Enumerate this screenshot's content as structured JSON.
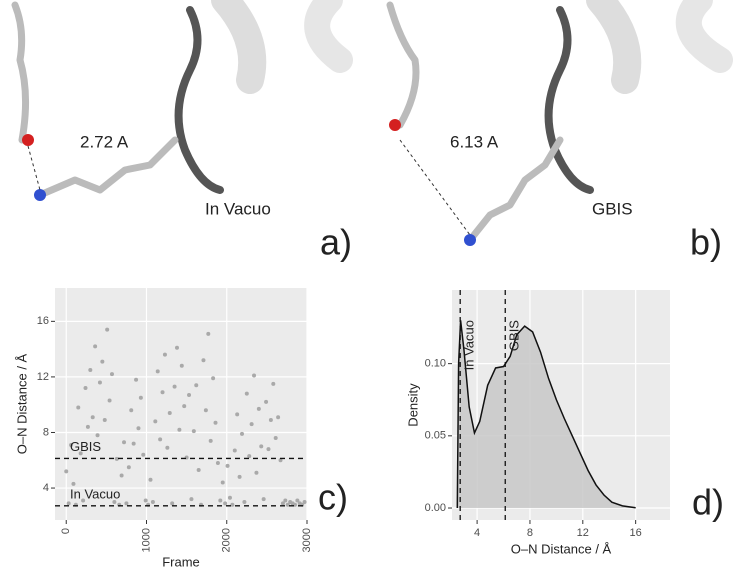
{
  "panels": {
    "a": {
      "distance": "2.72 A",
      "label": "In Vacuo",
      "tag": "a)"
    },
    "b": {
      "distance": "6.13 A",
      "label": "GBIS",
      "tag": "b)"
    }
  },
  "chart_data": [
    {
      "type": "scatter",
      "tag": "c)",
      "xlabel": "Frame",
      "ylabel": "O–N Distance / Å",
      "xlim": [
        -140,
        3000
      ],
      "ylim": [
        1.7,
        18.4
      ],
      "xticks": [
        0,
        1000,
        2000,
        3000
      ],
      "yticks": [
        4,
        8,
        12,
        16
      ],
      "grid": true,
      "color": "#a9a9a9",
      "annotations": [
        {
          "label": "GBIS",
          "y": 6.13
        },
        {
          "label": "In Vacuo",
          "y": 2.72
        }
      ],
      "x": [
        0,
        30,
        60,
        90,
        120,
        150,
        180,
        210,
        240,
        270,
        300,
        330,
        360,
        390,
        420,
        450,
        480,
        510,
        540,
        570,
        600,
        630,
        660,
        690,
        720,
        750,
        780,
        810,
        840,
        870,
        900,
        930,
        960,
        990,
        1020,
        1050,
        1080,
        1110,
        1140,
        1170,
        1200,
        1230,
        1260,
        1290,
        1320,
        1350,
        1380,
        1410,
        1440,
        1470,
        1500,
        1530,
        1560,
        1590,
        1620,
        1650,
        1680,
        1710,
        1740,
        1770,
        1800,
        1830,
        1860,
        1890,
        1920,
        1950,
        1980,
        2010,
        2040,
        2070,
        2100,
        2130,
        2160,
        2190,
        2220,
        2250,
        2280,
        2310,
        2340,
        2370,
        2400,
        2430,
        2460,
        2490,
        2520,
        2550,
        2580,
        2610,
        2640,
        2670,
        2700,
        2730,
        2760,
        2790,
        2820,
        2850,
        2880,
        2910,
        2940,
        2970
      ],
      "values": [
        5.2,
        2.9,
        7.1,
        4.3,
        2.8,
        9.8,
        6.5,
        3.1,
        11.2,
        8.4,
        12.5,
        9.1,
        14.2,
        7.8,
        11.6,
        13.1,
        8.9,
        15.4,
        10.3,
        12.2,
        3.0,
        6.1,
        2.8,
        4.9,
        7.3,
        2.9,
        5.5,
        9.6,
        7.2,
        11.8,
        8.3,
        10.5,
        6.4,
        3.1,
        2.8,
        4.6,
        3.0,
        8.8,
        12.4,
        7.5,
        10.9,
        13.6,
        6.9,
        9.4,
        2.9,
        11.3,
        14.1,
        8.2,
        12.8,
        9.9,
        6.2,
        10.7,
        3.2,
        8.1,
        11.4,
        5.3,
        2.8,
        13.2,
        9.6,
        15.1,
        7.4,
        11.9,
        8.7,
        5.8,
        3.1,
        4.4,
        2.9,
        5.6,
        3.3,
        2.8,
        6.7,
        9.3,
        4.8,
        7.9,
        3.0,
        10.8,
        6.3,
        8.6,
        12.1,
        5.1,
        9.7,
        7.0,
        3.2,
        10.2,
        6.8,
        8.9,
        11.5,
        7.6,
        9.1,
        6.0,
        2.9,
        3.1,
        2.8,
        3.0,
        2.9,
        2.8,
        3.1,
        2.9,
        2.8,
        3.0
      ]
    },
    {
      "type": "area",
      "tag": "d)",
      "xlabel": "O–N Distance / Å",
      "ylabel": "Density",
      "xlim": [
        2.1,
        18.6
      ],
      "ylim": [
        -0.0083,
        0.151
      ],
      "xticks": [
        4,
        8,
        12,
        16
      ],
      "yticks": [
        {
          "value": 0,
          "label": "0.00"
        },
        {
          "value": 0.05,
          "label": "0.05"
        },
        {
          "value": 0.1,
          "label": "0.10"
        }
      ],
      "grid": true,
      "color": "#c8c8c8",
      "annotations": [
        {
          "label": "In Vacuo",
          "x": 2.72
        },
        {
          "label": "GBIS",
          "x": 6.13
        }
      ],
      "x": [
        2.5,
        2.6,
        2.75,
        3.0,
        3.4,
        3.8,
        4.2,
        4.8,
        5.4,
        6.0,
        6.5,
        7.0,
        7.6,
        8.2,
        8.8,
        9.4,
        10.0,
        10.6,
        11.2,
        11.8,
        12.4,
        13.0,
        13.6,
        14.2,
        15.0,
        16.0
      ],
      "values": [
        0,
        0.1,
        0.13,
        0.11,
        0.07,
        0.052,
        0.06,
        0.085,
        0.097,
        0.098,
        0.105,
        0.12,
        0.126,
        0.122,
        0.108,
        0.09,
        0.075,
        0.062,
        0.05,
        0.038,
        0.026,
        0.016,
        0.009,
        0.004,
        0.0015,
        0.0002
      ]
    }
  ]
}
